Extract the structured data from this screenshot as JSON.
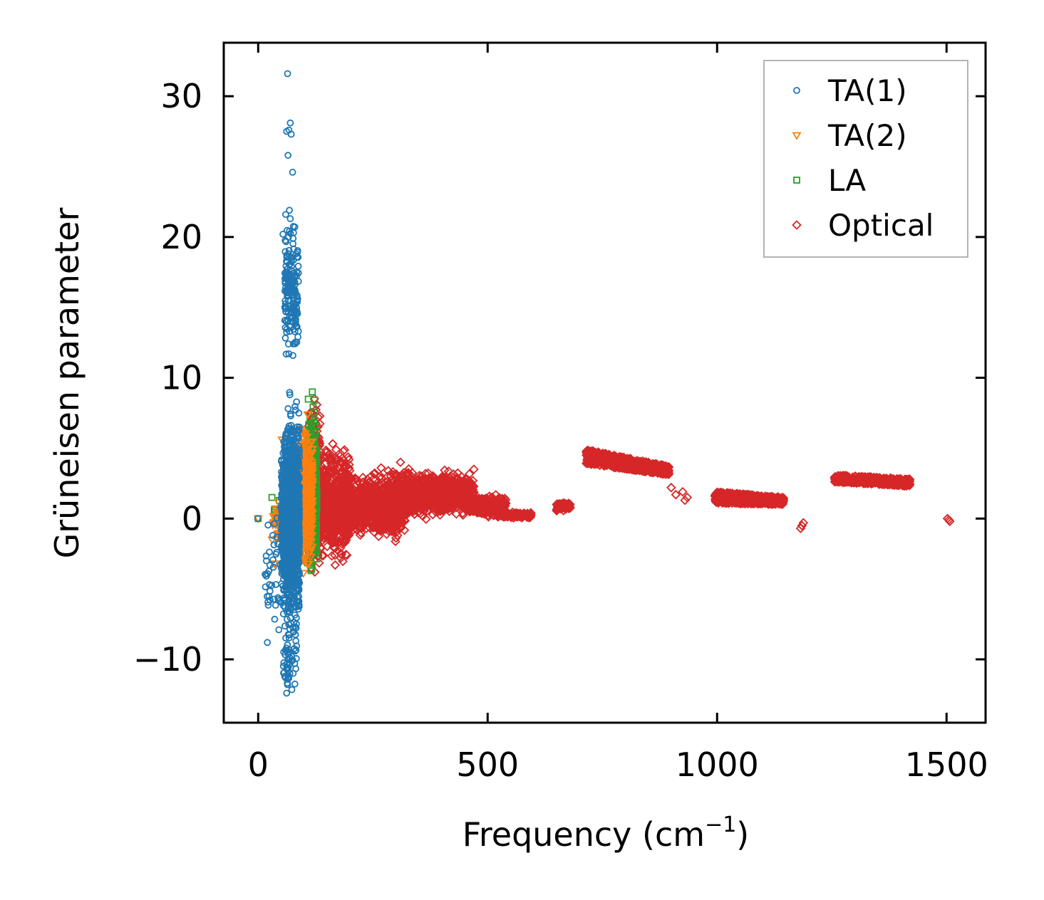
{
  "chart_data": {
    "type": "scatter",
    "title": "",
    "xlabel": "Frequency (cm",
    "xlabel_sup": "−1",
    "xlabel_close": ")",
    "ylabel": "Grüneisen parameter",
    "xlim": [
      -75,
      1585
    ],
    "ylim": [
      -14.5,
      33.8
    ],
    "xticks": [
      0,
      500,
      1000,
      1500
    ],
    "yticks": [
      -10,
      0,
      10,
      20,
      30
    ],
    "xtick_labels": [
      "0",
      "500",
      "1000",
      "1500"
    ],
    "ytick_labels": [
      "−10",
      "0",
      "10",
      "20",
      "30"
    ],
    "legend_position": "top-right",
    "series": [
      {
        "name": "TA(1)",
        "marker": "circle",
        "color": "#1f77b4",
        "clusters": [
          {
            "x": [
              55,
              90
            ],
            "y": [
              -10,
              10
            ],
            "n": 900
          },
          {
            "x": [
              50,
              90
            ],
            "y": [
              -6,
              6
            ],
            "n": 700
          },
          {
            "x": [
              58,
              88
            ],
            "y": [
              10,
              22
            ],
            "n": 170
          },
          {
            "x": [
              55,
              85
            ],
            "y": [
              -12.5,
              -7
            ],
            "n": 50
          },
          {
            "x": [
              15,
              55
            ],
            "y": [
              -8.8,
              1.5
            ],
            "n": 40
          }
        ],
        "points": [
          [
            64,
            31.6
          ],
          [
            70,
            28.1
          ],
          [
            67,
            27.6
          ],
          [
            72,
            27.3
          ],
          [
            62,
            27.5
          ],
          [
            65,
            25.8
          ],
          [
            75,
            24.6
          ],
          [
            60,
            21.6
          ],
          [
            68,
            21.9
          ],
          [
            70,
            21.3
          ],
          [
            77,
            20.3
          ],
          [
            76,
            19.9
          ],
          [
            54,
            20.2
          ],
          [
            62,
            18.7
          ],
          [
            66,
            12.4
          ],
          [
            58,
            15.0
          ],
          [
            -1,
            0
          ],
          [
            20,
            -8.8
          ],
          [
            45,
            -7.9
          ],
          [
            62,
            -12.4
          ],
          [
            64,
            -11.8
          ]
        ]
      },
      {
        "name": "TA(2)",
        "marker": "triangle-down",
        "color": "#ff7f0e",
        "clusters": [
          {
            "x": [
              85,
              118
            ],
            "y": [
              -4.5,
              7.5
            ],
            "n": 500
          },
          {
            "x": [
              30,
              85
            ],
            "y": [
              -3,
              2
            ],
            "n": 60
          }
        ],
        "points": [
          [
            52,
            5.6
          ],
          [
            108,
            7.4
          ],
          [
            35,
            -3.2
          ],
          [
            0,
            0
          ]
        ]
      },
      {
        "name": "LA",
        "marker": "square",
        "color": "#2ca02c",
        "clusters": [
          {
            "x": [
              108,
              128
            ],
            "y": [
              -5,
              9.2
            ],
            "n": 450
          },
          {
            "x": [
              35,
              100
            ],
            "y": [
              -1.5,
              1.5
            ],
            "n": 40
          }
        ],
        "points": [
          [
            0,
            0
          ],
          [
            30,
            1.5
          ],
          [
            118,
            9.0
          ]
        ]
      },
      {
        "name": "Optical",
        "marker": "diamond",
        "color": "#d62728",
        "clusters": [
          {
            "x": [
              110,
              135
            ],
            "y": [
              -5,
              10
            ],
            "n": 260
          },
          {
            "x": [
              130,
              200
            ],
            "y": [
              -4,
              6
            ],
            "n": 550
          },
          {
            "x": [
              180,
              320
            ],
            "y": [
              -2,
              3.6
            ],
            "n": 750
          },
          {
            "x": [
              280,
              420
            ],
            "y": [
              -0.3,
              3.8
            ],
            "n": 650
          },
          {
            "x": [
              400,
              470
            ],
            "y": [
              0,
              3.5
            ],
            "n": 400
          },
          {
            "x": [
              460,
              540
            ],
            "y": [
              0,
              1.8
            ],
            "n": 300
          },
          {
            "x": [
              520,
              595
            ],
            "y": [
              0,
              0.5
            ],
            "n": 150
          },
          {
            "x": [
              650,
              680
            ],
            "y": [
              0.5,
              1.2
            ],
            "n": 80
          }
        ],
        "bands": [
          {
            "x": [
              715,
              895
            ],
            "y_start": [
              3.9,
              4.9
            ],
            "y_end": [
              3.1,
              3.7
            ],
            "n": 700
          },
          {
            "x": [
              995,
              1145
            ],
            "y_start": [
              1.1,
              1.9
            ],
            "y_end": [
              1.0,
              1.5
            ],
            "n": 600
          },
          {
            "x": [
              1255,
              1420
            ],
            "y_start": [
              2.6,
              3.1
            ],
            "y_end": [
              2.3,
              2.8
            ],
            "n": 500
          }
        ],
        "points": [
          [
            900,
            2.2
          ],
          [
            910,
            1.7
          ],
          [
            925,
            1.9
          ],
          [
            935,
            1.5
          ],
          [
            930,
            1.3
          ],
          [
            1185,
            -0.5
          ],
          [
            1188,
            -0.3
          ],
          [
            1182,
            -0.7
          ],
          [
            1505,
            -0.1
          ],
          [
            1502,
            0.0
          ],
          [
            1507,
            -0.2
          ],
          [
            268,
            3.6
          ],
          [
            310,
            4.0
          ],
          [
            365,
            3.2
          ],
          [
            470,
            3.5
          ],
          [
            180,
            -2.5
          ]
        ]
      }
    ]
  }
}
